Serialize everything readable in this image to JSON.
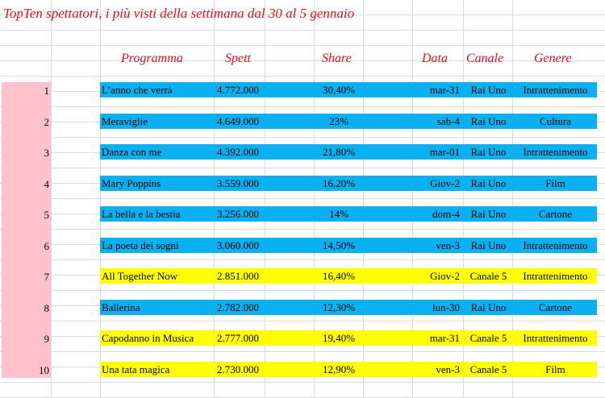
{
  "sheet": {
    "title": "TopTen spettatori, i più visti della settimana dal 30 al 5 gennaio",
    "headers": {
      "programma": "Programma",
      "spett": "Spett",
      "share": "Share",
      "data": "Data",
      "canale": "Canale",
      "genere": "Genere"
    },
    "rows": [
      {
        "num": "1",
        "programma": "L’anno che verrà",
        "spett": "4.772.000",
        "share": "30,40%",
        "data": "mar-31",
        "canale": "Rai Uno",
        "genere": "Intrattenimento",
        "color": "blue"
      },
      {
        "num": "2",
        "programma": "Meraviglie",
        "spett": "4.649.000",
        "share": "23%",
        "data": "sab-4",
        "canale": "Rai Uno",
        "genere": "Cultura",
        "color": "blue"
      },
      {
        "num": "3",
        "programma": "Danza con me",
        "spett": "4.392.000",
        "share": "21,80%",
        "data": "mar-01",
        "canale": "Rai Uno",
        "genere": "Intrattenimento",
        "color": "blue"
      },
      {
        "num": "4",
        "programma": "Mary Poppins",
        "spett": "3.559.000",
        "share": "16,20%",
        "data": "Giov-2",
        "canale": "Rai Uno",
        "genere": "Film",
        "color": "blue"
      },
      {
        "num": "5",
        "programma": "La bella e la bestia",
        "spett": "3.256.000",
        "share": "14%",
        "data": "dom-4",
        "canale": "Rai Uno",
        "genere": "Cartone",
        "color": "blue"
      },
      {
        "num": "6",
        "programma": "La poeta dei sogni",
        "spett": "3.060.000",
        "share": "14,50%",
        "data": "ven-3",
        "canale": "Rai Uno",
        "genere": "Intrattenimento",
        "color": "blue"
      },
      {
        "num": "7",
        "programma": "All Together Now",
        "spett": "2.851.000",
        "share": "16,40%",
        "data": "Giov-2",
        "canale": "Canale 5",
        "genere": "Intrattenimento",
        "color": "yellow"
      },
      {
        "num": "8",
        "programma": "Ballerina",
        "spett": "2.782.000",
        "share": "12,30%",
        "data": "lun-30",
        "canale": "Rai Uno",
        "genere": "Cartone",
        "color": "blue"
      },
      {
        "num": "9",
        "programma": "Capodanno in Musica",
        "spett": "2.777.000",
        "share": "19,40%",
        "data": "mar-31",
        "canale": "Canale 5",
        "genere": "Intrattenimento",
        "color": "yellow"
      },
      {
        "num": "10",
        "programma": "Una tata magica",
        "spett": "2.730.000",
        "share": "12,90%",
        "data": "ven-3",
        "canale": "Canale 5",
        "genere": "Film",
        "color": "yellow"
      }
    ]
  },
  "colors": {
    "rai": "#0ab0ef",
    "mediaset": "#ffff00",
    "rank_bar": "#ffc2cb",
    "title": "#e0101a"
  }
}
